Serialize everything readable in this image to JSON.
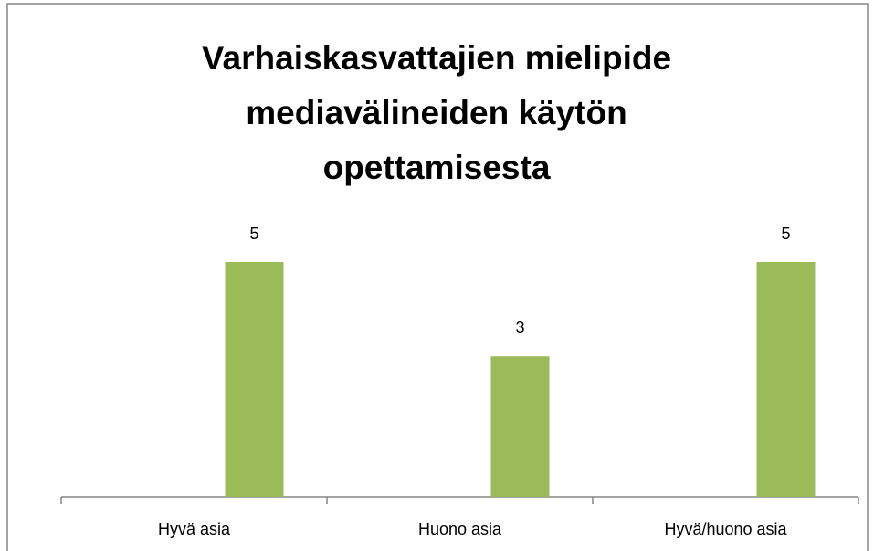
{
  "chart_data": {
    "type": "bar",
    "title": "Varhaiskasvattajien mielipide mediavälineiden käytön opettamisesta",
    "categories": [
      "Hyvä asia",
      "Huono asia",
      "Hyvä/huono asia"
    ],
    "values": [
      5,
      3,
      5
    ],
    "color": "#9bbb59"
  }
}
